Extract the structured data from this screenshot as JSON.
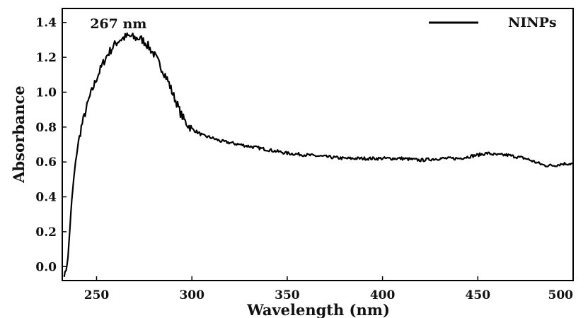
{
  "chart_data": {
    "type": "line",
    "xlabel": "Wavelength (nm)",
    "ylabel": "Absorbance",
    "xlim": [
      232,
      500
    ],
    "ylim": [
      -0.08,
      1.48
    ],
    "x_ticks": [
      250,
      300,
      350,
      400,
      450,
      500
    ],
    "y_ticks": [
      0.0,
      0.2,
      0.4,
      0.6,
      0.8,
      1.0,
      1.2,
      1.4
    ],
    "x_tick_labels": [
      "250",
      "300",
      "350",
      "400",
      "450",
      "500"
    ],
    "y_tick_labels": [
      "0.0",
      "0.2",
      "0.4",
      "0.6",
      "0.8",
      "1.0",
      "1.2",
      "1.4"
    ],
    "grid": false,
    "legend_position": "top-right",
    "annotations": [
      {
        "text": "267 nm",
        "x": 267,
        "y": 1.39
      }
    ],
    "series": [
      {
        "name": "NINPs",
        "color": "#000000",
        "x": [
          233,
          234,
          235,
          236,
          237,
          238,
          239,
          240,
          242,
          244,
          246,
          248,
          250,
          252,
          254,
          256,
          258,
          260,
          262,
          264,
          266,
          268,
          270,
          272,
          274,
          276,
          278,
          280,
          282,
          284,
          286,
          288,
          290,
          292,
          294,
          296,
          298,
          300,
          303,
          306,
          310,
          315,
          320,
          325,
          330,
          335,
          340,
          345,
          350,
          360,
          370,
          380,
          390,
          400,
          410,
          420,
          430,
          440,
          445,
          450,
          455,
          460,
          465,
          470,
          475,
          480,
          485,
          490,
          495,
          500
        ],
        "y": [
          -0.05,
          -0.02,
          0.05,
          0.22,
          0.38,
          0.5,
          0.6,
          0.68,
          0.8,
          0.88,
          0.96,
          1.02,
          1.08,
          1.13,
          1.18,
          1.22,
          1.25,
          1.28,
          1.3,
          1.31,
          1.32,
          1.32,
          1.31,
          1.31,
          1.3,
          1.28,
          1.25,
          1.22,
          1.18,
          1.14,
          1.1,
          1.05,
          0.99,
          0.94,
          0.88,
          0.84,
          0.81,
          0.79,
          0.77,
          0.75,
          0.74,
          0.72,
          0.71,
          0.7,
          0.69,
          0.68,
          0.67,
          0.66,
          0.65,
          0.64,
          0.63,
          0.62,
          0.62,
          0.62,
          0.62,
          0.61,
          0.62,
          0.62,
          0.63,
          0.64,
          0.65,
          0.64,
          0.64,
          0.63,
          0.62,
          0.6,
          0.58,
          0.58,
          0.59,
          0.59
        ]
      }
    ]
  }
}
